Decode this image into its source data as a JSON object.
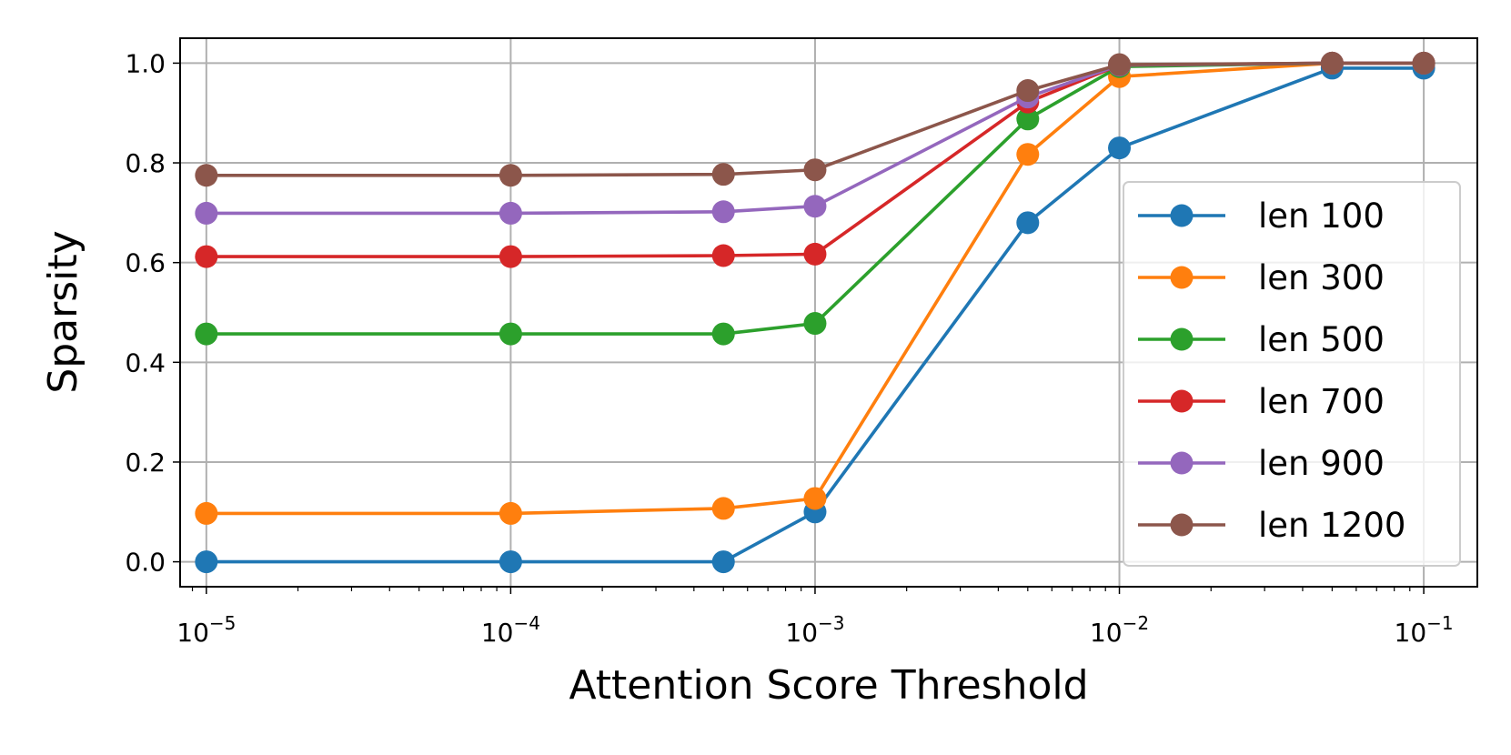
{
  "chart_data": {
    "type": "line",
    "xscale": "log",
    "xlabel": "Attention Score Threshold",
    "ylabel": "Sparsity",
    "xlim": [
      8.2e-06,
      0.15
    ],
    "ylim": [
      -0.05,
      1.05
    ],
    "grid": true,
    "legend_position": "lower-right",
    "x": [
      1e-05,
      0.0001,
      0.0005,
      0.001,
      0.005,
      0.01,
      0.05,
      0.1
    ],
    "x_ticks": [
      {
        "value": 1e-05,
        "base": "10",
        "exp": "−5"
      },
      {
        "value": 0.0001,
        "base": "10",
        "exp": "−4"
      },
      {
        "value": 0.001,
        "base": "10",
        "exp": "−3"
      },
      {
        "value": 0.01,
        "base": "10",
        "exp": "−2"
      },
      {
        "value": 0.1,
        "base": "10",
        "exp": "−1"
      }
    ],
    "y_ticks": [
      {
        "value": 0.0,
        "label": "0.0"
      },
      {
        "value": 0.2,
        "label": "0.2"
      },
      {
        "value": 0.4,
        "label": "0.4"
      },
      {
        "value": 0.6,
        "label": "0.6"
      },
      {
        "value": 0.8,
        "label": "0.8"
      },
      {
        "value": 1.0,
        "label": "1.0"
      }
    ],
    "series": [
      {
        "name": "len 100",
        "color": "#1f77b4",
        "values": [
          0.0,
          0.0,
          0.0,
          0.1,
          0.68,
          0.83,
          0.99,
          0.99
        ]
      },
      {
        "name": "len 300",
        "color": "#ff7f0e",
        "values": [
          0.097,
          0.097,
          0.107,
          0.127,
          0.817,
          0.973,
          1.0,
          1.0
        ]
      },
      {
        "name": "len 500",
        "color": "#2ca02c",
        "values": [
          0.457,
          0.457,
          0.457,
          0.478,
          0.888,
          0.993,
          1.0,
          1.0
        ]
      },
      {
        "name": "len 700",
        "color": "#d62728",
        "values": [
          0.612,
          0.612,
          0.614,
          0.617,
          0.922,
          0.996,
          1.0,
          1.0
        ]
      },
      {
        "name": "len 900",
        "color": "#9467bd",
        "values": [
          0.699,
          0.699,
          0.702,
          0.713,
          0.932,
          0.996,
          1.0,
          1.0
        ]
      },
      {
        "name": "len 1200",
        "color": "#8c564b",
        "values": [
          0.775,
          0.775,
          0.777,
          0.786,
          0.945,
          0.997,
          1.0,
          1.0
        ]
      }
    ]
  }
}
